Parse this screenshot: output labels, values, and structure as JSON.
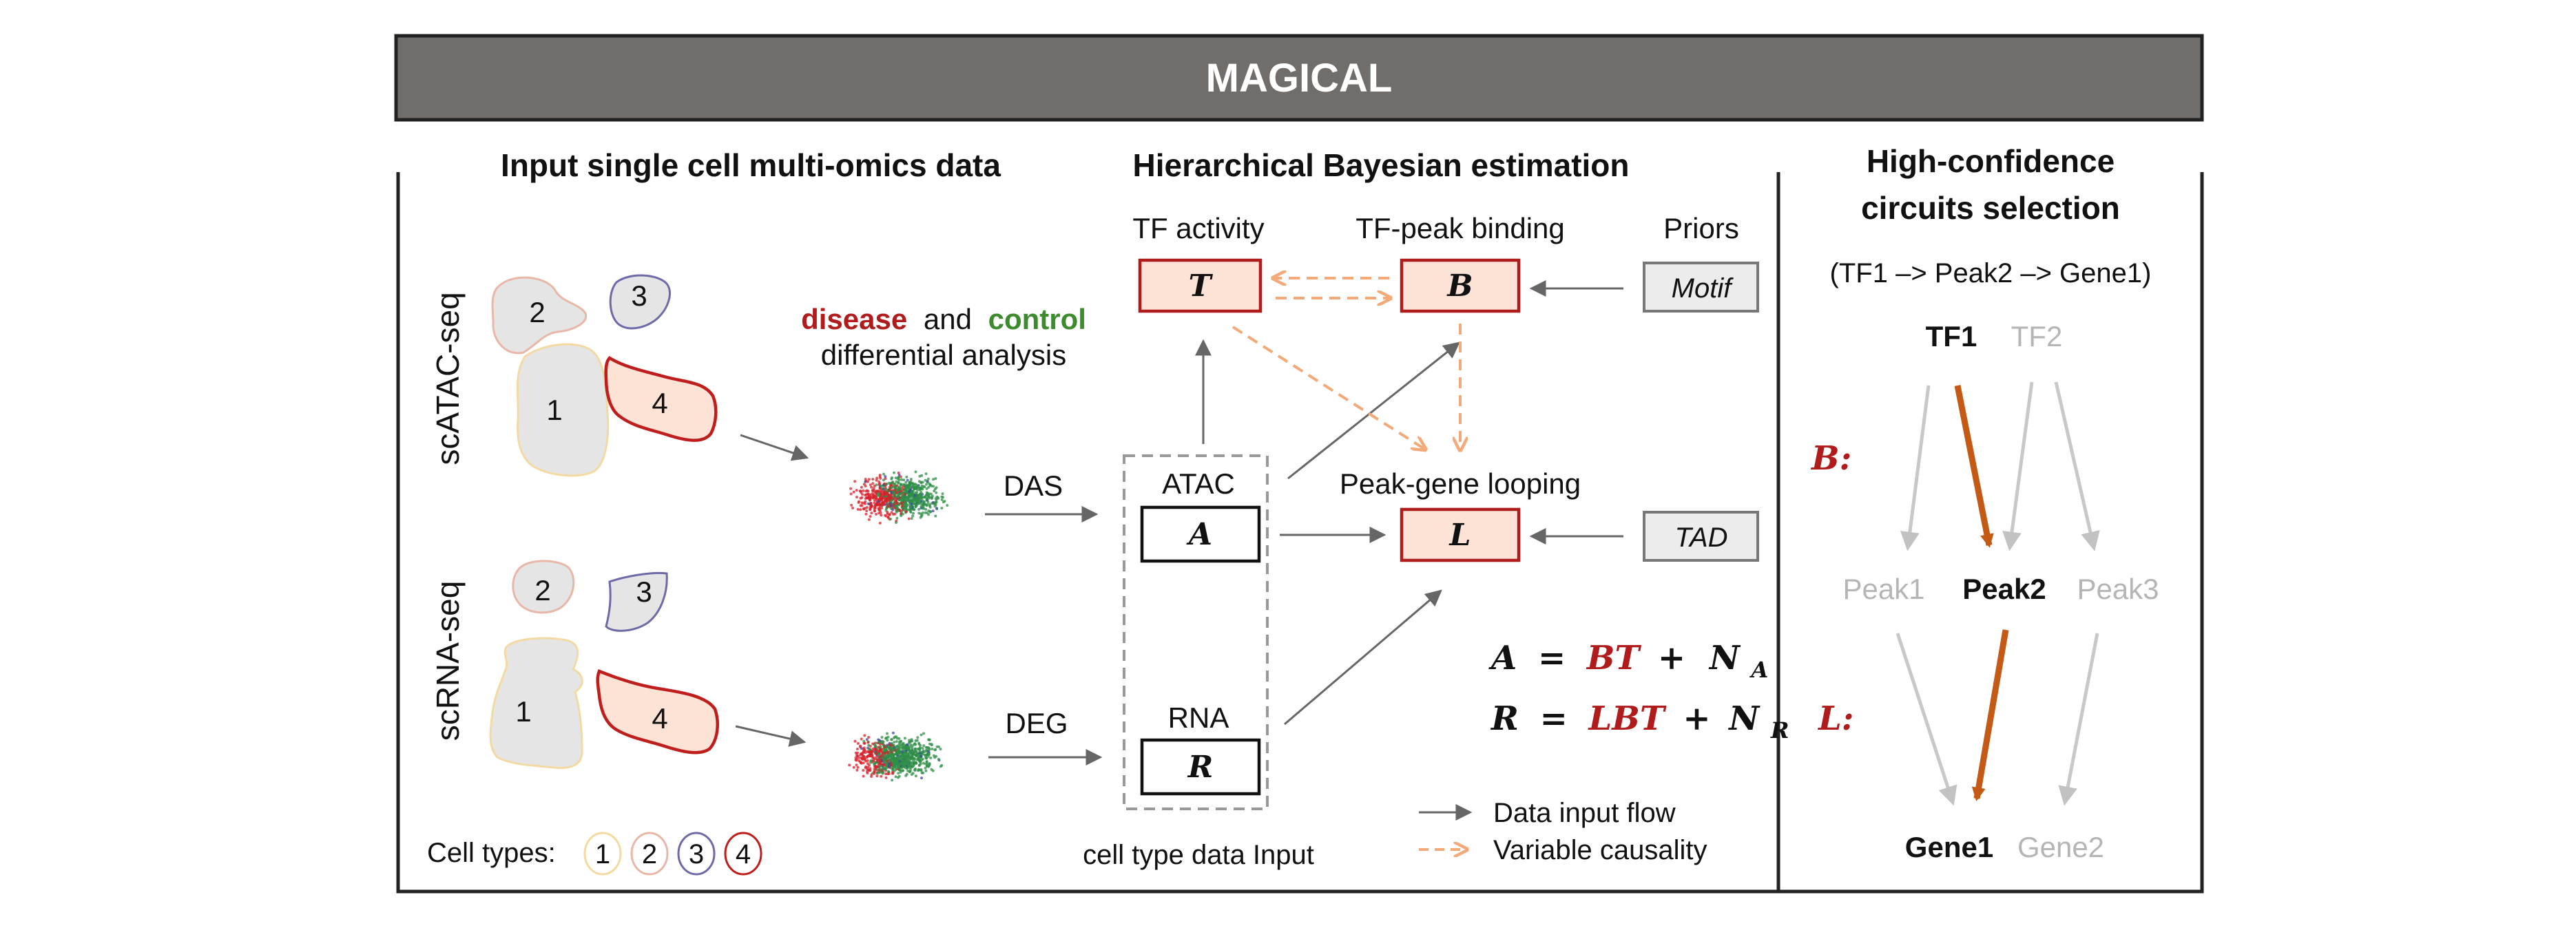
{
  "title": "MAGICAL",
  "sections": {
    "input": "Input single cell multi-omics data",
    "bayes": "Hierarchical Bayesian estimation",
    "circuits_line1": "High-confidence",
    "circuits_line2": "circuits selection"
  },
  "omics": {
    "atac_label": "scATAC-seq",
    "rna_label": "scRNA-seq",
    "atac_clusters": [
      "1",
      "2",
      "3",
      "4"
    ],
    "rna_clusters": [
      "1",
      "2",
      "3",
      "4"
    ],
    "cell_types_label": "Cell types:",
    "cell_types": [
      "1",
      "2",
      "3",
      "4"
    ]
  },
  "differential": {
    "disease": "disease",
    "and": "and",
    "control": "control",
    "line2": "differential analysis",
    "das": "DAS",
    "deg": "DEG"
  },
  "model": {
    "tf_activity": "TF activity",
    "tf_peak_binding": "TF-peak binding",
    "priors": "Priors",
    "peak_gene_looping": "Peak-gene looping",
    "T": "T",
    "B": "B",
    "L": "L",
    "motif": "Motif",
    "tad": "TAD",
    "atac": "ATAC",
    "A": "A",
    "rna": "RNA",
    "R": "R",
    "cell_type_input": "cell type data Input"
  },
  "equations": {
    "eq1_lhs": "A",
    "eq1_eq": "=",
    "eq1_red": "BT",
    "eq1_plus": "+",
    "eq1_n": "N",
    "eq1_sub": "A",
    "eq2_lhs": "R",
    "eq2_eq": "=",
    "eq2_red": "LBT",
    "eq2_plus": "+",
    "eq2_n": "N",
    "eq2_sub": "R"
  },
  "legend": {
    "data_flow": "Data input flow",
    "causality": "Variable causality"
  },
  "circuits": {
    "example": "(TF1 –> Peak2 –> Gene1)",
    "tf1": "TF1",
    "tf2": "TF2",
    "b_label": "B:",
    "l_label": "L:",
    "peak1": "Peak1",
    "peak2": "Peak2",
    "peak3": "Peak3",
    "gene1": "Gene1",
    "gene2": "Gene2"
  },
  "colors": {
    "header_bg": "#716d6b",
    "dark_red": "#b01c1c",
    "box_fill": "#fde3d6",
    "control_green": "#3e8a2e",
    "orange_dash": "#f3a978",
    "highlight_arrow": "#c45a16",
    "faded": "#b5b5b5",
    "cluster_gray": "#e5e5e5",
    "type1_border": "#f3d9a2",
    "type2_border": "#e8b7a7",
    "type3_border": "#6e6aa8",
    "type4_border": "#c01d1d"
  }
}
